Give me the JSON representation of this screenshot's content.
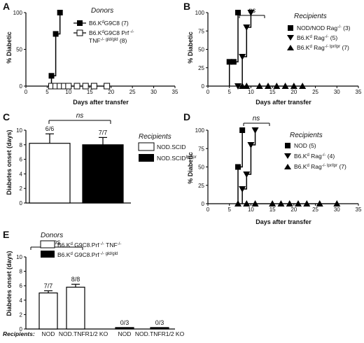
{
  "chart_data": [
    {
      "panel": "A",
      "type": "line",
      "ylabel": "% Diabetic",
      "xlabel": "Days after transfer",
      "xlim": [
        0,
        35
      ],
      "ylim": [
        0,
        100
      ],
      "xticks": [
        0,
        5,
        10,
        15,
        20,
        25,
        30,
        35
      ],
      "yticks": [
        0,
        50,
        100
      ],
      "legend_title": "Donors",
      "series": [
        {
          "name": "B6.KdG9C8 (7)",
          "marker": "square-filled",
          "points": [
            [
              6,
              14
            ],
            [
              7,
              71
            ],
            [
              8,
              100
            ]
          ]
        },
        {
          "name": "B6.KdG9C8 Prf -/- TNF-/- gld/gld (8)",
          "marker": "square-open",
          "points": [
            [
              6,
              0
            ],
            [
              7,
              0
            ],
            [
              8,
              0
            ],
            [
              9,
              0
            ],
            [
              10,
              0
            ],
            [
              12,
              0
            ],
            [
              14,
              0
            ],
            [
              16,
              0
            ],
            [
              19,
              0
            ]
          ]
        }
      ]
    },
    {
      "panel": "B",
      "type": "line",
      "ylabel": "% Diabetic",
      "xlabel": "Days after transfer",
      "xlim": [
        0,
        35
      ],
      "ylim": [
        0,
        100
      ],
      "xticks": [
        0,
        5,
        10,
        15,
        20,
        25,
        30,
        35
      ],
      "yticks": [
        0,
        25,
        50,
        75,
        100
      ],
      "legend_title": "Recipients",
      "annotation": "ns",
      "series": [
        {
          "name": "NOD/NOD Rag-/- (3)",
          "marker": "square-filled",
          "points": [
            [
              5,
              33
            ],
            [
              6,
              33
            ],
            [
              7,
              100
            ]
          ]
        },
        {
          "name": "B6.Kd Rag-/- (5)",
          "marker": "triangle-down",
          "points": [
            [
              7,
              0
            ],
            [
              8,
              40
            ],
            [
              9,
              80
            ],
            [
              10,
              100
            ]
          ]
        },
        {
          "name": "B6.Kd Rag-/- lpr/lpr (7)",
          "marker": "triangle-up",
          "points": [
            [
              8,
              0
            ],
            [
              9,
              0
            ],
            [
              12,
              0
            ],
            [
              14,
              0
            ],
            [
              16,
              0
            ],
            [
              18,
              0
            ],
            [
              20,
              0
            ],
            [
              22,
              0
            ]
          ]
        }
      ]
    },
    {
      "panel": "C",
      "type": "bar",
      "ylabel": "Diabetes onset (days)",
      "ylim": [
        0,
        10
      ],
      "yticks": [
        0,
        2,
        4,
        6,
        8,
        10
      ],
      "legend_title": "Recipients",
      "annotation": "ns",
      "categories": [
        "NOD.SCID",
        "NOD.SCIDlpr/lpr"
      ],
      "values": [
        8.2,
        8.0
      ],
      "errors": [
        1.3,
        1.0
      ],
      "labels": [
        "6/6",
        "7/7"
      ]
    },
    {
      "panel": "D",
      "type": "line",
      "ylabel": "% Diabetic",
      "xlabel": "Days after transfer",
      "xlim": [
        0,
        35
      ],
      "ylim": [
        0,
        100
      ],
      "xticks": [
        0,
        5,
        10,
        15,
        20,
        25,
        30,
        35
      ],
      "yticks": [
        0,
        25,
        50,
        75,
        100
      ],
      "legend_title": "Recipients",
      "annotation": "ns",
      "series": [
        {
          "name": "NOD (5)",
          "marker": "square-filled",
          "points": [
            [
              7,
              50
            ],
            [
              8,
              100
            ]
          ]
        },
        {
          "name": "B6.Kd Rag-/- (4)",
          "marker": "triangle-down",
          "points": [
            [
              8,
              20
            ],
            [
              9,
              40
            ],
            [
              10,
              80
            ],
            [
              11,
              100
            ]
          ]
        },
        {
          "name": "B6.Kd Rag-/- lpr/lpr (7)",
          "marker": "triangle-up",
          "points": [
            [
              7,
              0
            ],
            [
              9,
              0
            ],
            [
              11,
              0
            ],
            [
              15,
              0
            ],
            [
              17,
              0
            ],
            [
              19,
              0
            ],
            [
              21,
              0
            ],
            [
              23,
              0
            ],
            [
              26,
              0
            ],
            [
              30,
              0
            ]
          ]
        }
      ]
    },
    {
      "panel": "E",
      "type": "bar",
      "ylabel": "Diabetes onset (days)",
      "ylim": [
        0,
        10
      ],
      "yticks": [
        0,
        2,
        4,
        6,
        8,
        10
      ],
      "legend_title": "Donors",
      "annotation": "ns",
      "recipients_label": "Recipients:",
      "categories": [
        "NOD",
        "NOD.TNFR1/2 KO",
        "NOD",
        "NOD.TNFR1/2 KO"
      ],
      "series": [
        {
          "name": "B6.Kd G9C8.Prf -/- TNF-/-",
          "fill": "#ffffff"
        },
        {
          "name": "B6.Kd G9C8.Prf -/- gld/gld",
          "fill": "#000000"
        }
      ],
      "values": [
        5.0,
        5.8,
        0.2,
        0.2
      ],
      "errors": [
        0.3,
        0.4,
        0,
        0
      ],
      "bar_series": [
        0,
        0,
        1,
        1
      ],
      "labels": [
        "7/7",
        "8/8",
        "0/3",
        "0/3"
      ]
    }
  ],
  "panels": {
    "a": {
      "letter": "A",
      "ylabel": "% Diabetic",
      "xlabel": "Days after transfer",
      "legend_title": "Donors",
      "leg1": "B6.K",
      "leg1_sup": "d",
      "leg1_end": "G9C8 (7)",
      "leg2": "B6.K",
      "leg2_sup": "d",
      "leg2_mid": "G9C8 Prf",
      "leg2_sup2": " -/-",
      "leg2b": "TNF",
      "leg2b_sup": "-/- gld/gld",
      "leg2b_end": " (8)"
    },
    "b": {
      "letter": "B",
      "ylabel": "% Diabetic",
      "xlabel": "Days after transfer",
      "legend_title": "Recipients",
      "ns": "ns",
      "leg1": "NOD/NOD Rag",
      "leg1_sup": "-/-",
      "leg1_end": " (3)",
      "leg2": "B6.K",
      "leg2_sup": "d",
      "leg2_mid": " Rag",
      "leg2_sup2": "-/-",
      "leg2_end": " (5)",
      "leg3": "B6.K",
      "leg3_sup": "d",
      "leg3_mid": " Rag",
      "leg3_sup2": "-/- lpr/lpr",
      "leg3_end": " (7)"
    },
    "c": {
      "letter": "C",
      "ylabel": "Diabetes onset (days)",
      "legend_title": "Recipients",
      "ns": "ns",
      "leg1": "NOD.SCID",
      "leg2": "NOD.SCID",
      "leg2_sup": "lpr/lpr",
      "lab1": "6/6",
      "lab2": "7/7"
    },
    "d": {
      "letter": "D",
      "ylabel": "% Diabetic",
      "xlabel": "Days after transfer",
      "legend_title": "Recipients",
      "ns": "ns",
      "leg1": "NOD (5)",
      "leg2": "B6.K",
      "leg2_sup": "d",
      "leg2_mid": " Rag",
      "leg2_sup2": "-/-",
      "leg2_end": " (4)",
      "leg3": "B6.K",
      "leg3_sup": "d",
      "leg3_mid": " Rag",
      "leg3_sup2": "-/- lpr/lpr",
      "leg3_end": " (7)"
    },
    "e": {
      "letter": "E",
      "ylabel": "Diabetes onset (days)",
      "legend_title": "Donors",
      "ns": "ns",
      "recipients": "Recipients:",
      "leg1": "B6.K",
      "leg1_sup": "d",
      "leg1_mid": " G9C8.Prf",
      "leg1_sup2": " -/-",
      "leg1_mid2": " TNF",
      "leg1_sup3": "-/-",
      "leg2": "B6.K",
      "leg2_sup": "d",
      "leg2_mid": " G9C8.Prf",
      "leg2_sup2": " -/- gld/gld",
      "cat1": "NOD",
      "cat2": "NOD.TNFR1/2 KO",
      "cat3": "NOD",
      "cat4": "NOD.TNFR1/2 KO",
      "lab1": "7/7",
      "lab2": "8/8",
      "lab3": "0/3",
      "lab4": "0/3"
    }
  },
  "ticks": {
    "x": [
      "0",
      "5",
      "10",
      "15",
      "20",
      "25",
      "30",
      "35"
    ],
    "y100": [
      "0",
      "50",
      "100"
    ],
    "y25": [
      "0",
      "25",
      "50",
      "75",
      "100"
    ],
    "y10": [
      "0",
      "2",
      "4",
      "6",
      "8",
      "10"
    ]
  }
}
